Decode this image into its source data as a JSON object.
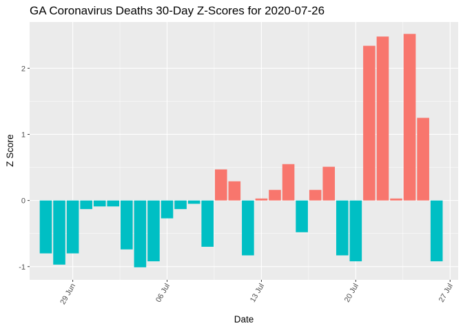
{
  "chart_data": {
    "type": "bar",
    "title": "GA Coronavirus Deaths 30-Day Z-Scores for 2020-07-26",
    "xlabel": "Date",
    "ylabel": "Z Score",
    "ylim": [
      -1.2,
      2.7
    ],
    "y_ticks": [
      -1,
      0,
      1,
      2
    ],
    "y_tick_labels": [
      "-1",
      "0",
      "1",
      "2"
    ],
    "x_ticks": [
      {
        "day": 0,
        "label": "29 Jun"
      },
      {
        "day": 7,
        "label": "06 Jul"
      },
      {
        "day": 14,
        "label": "13 Jul"
      },
      {
        "day": 21,
        "label": "20 Jul"
      },
      {
        "day": 28,
        "label": "27 Jul"
      }
    ],
    "x_range_days": [
      -3.2,
      28.6
    ],
    "first_date": "2020-06-27",
    "first_date_day_offset": -2,
    "grid": true,
    "colors": {
      "positive": "#F8766D",
      "negative": "#00BFC4",
      "panel": "#EBEBEB",
      "grid_major": "#FFFFFF"
    },
    "values": [
      -0.8,
      -0.97,
      -0.8,
      -0.13,
      -0.09,
      -0.09,
      -0.74,
      -1.01,
      -0.92,
      -0.27,
      -0.13,
      -0.05,
      -0.7,
      0.47,
      0.29,
      -0.83,
      0.03,
      0.16,
      0.55,
      -0.48,
      0.16,
      0.51,
      -0.83,
      -0.92,
      2.34,
      2.48,
      0.03,
      2.52,
      1.25,
      -0.92
    ]
  }
}
